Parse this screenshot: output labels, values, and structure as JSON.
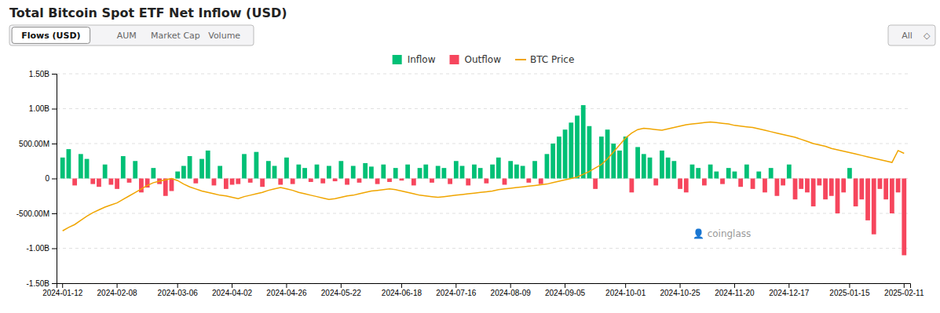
{
  "chart_data": {
    "type": "bar",
    "title": "Total Bitcoin Spot ETF Net Inflow (USD)",
    "annotations": [
      "Flows (USD)",
      "AUM",
      "Market Cap",
      "Volume",
      "All",
      "◇",
      "👤 coinglass"
    ],
    "categories": [
      "2024-01-12",
      null,
      null,
      null,
      null,
      null,
      null,
      null,
      null,
      "2024-02-08",
      null,
      null,
      null,
      null,
      null,
      null,
      null,
      null,
      null,
      "2024-03-06",
      null,
      null,
      null,
      null,
      null,
      null,
      null,
      null,
      "2024-04-02",
      null,
      null,
      null,
      null,
      null,
      null,
      null,
      null,
      "2024-04-26",
      null,
      null,
      null,
      null,
      null,
      null,
      null,
      null,
      "2024-05-22",
      null,
      null,
      null,
      null,
      null,
      null,
      null,
      null,
      null,
      "2024-06-18",
      null,
      null,
      null,
      null,
      null,
      null,
      null,
      null,
      "2024-07-16",
      null,
      null,
      null,
      null,
      null,
      null,
      null,
      null,
      "2024-08-09",
      null,
      null,
      null,
      null,
      null,
      null,
      null,
      null,
      "2024-09-05",
      null,
      null,
      null,
      null,
      null,
      null,
      null,
      null,
      null,
      "2024-10-01",
      null,
      null,
      null,
      null,
      null,
      null,
      null,
      null,
      "2024-10-25",
      null,
      null,
      null,
      null,
      null,
      null,
      null,
      null,
      "2024-11-20",
      null,
      null,
      null,
      null,
      null,
      null,
      null,
      null,
      "2024-12-17",
      null,
      null,
      null,
      null,
      null,
      null,
      null,
      null,
      null,
      "2025-01-15",
      null,
      null,
      null,
      null,
      null,
      null,
      null,
      null,
      "2025-02-11"
    ],
    "series": [
      {
        "name": "Inflow",
        "type": "bar",
        "color": "#00c076",
        "values": [
          300000000,
          420000000,
          null,
          350000000,
          280000000,
          null,
          null,
          200000000,
          null,
          null,
          320000000,
          null,
          250000000,
          null,
          null,
          150000000,
          null,
          null,
          null,
          100000000,
          180000000,
          320000000,
          null,
          280000000,
          400000000,
          null,
          180000000,
          null,
          null,
          null,
          350000000,
          null,
          380000000,
          null,
          250000000,
          180000000,
          null,
          300000000,
          null,
          200000000,
          150000000,
          null,
          200000000,
          null,
          180000000,
          null,
          250000000,
          null,
          180000000,
          null,
          220000000,
          170000000,
          null,
          200000000,
          null,
          150000000,
          null,
          200000000,
          null,
          150000000,
          200000000,
          null,
          180000000,
          150000000,
          null,
          250000000,
          180000000,
          null,
          200000000,
          150000000,
          null,
          200000000,
          300000000,
          null,
          250000000,
          200000000,
          180000000,
          null,
          250000000,
          null,
          350000000,
          500000000,
          600000000,
          700000000,
          800000000,
          900000000,
          1050000000,
          750000000,
          null,
          600000000,
          700000000,
          500000000,
          400000000,
          600000000,
          null,
          450000000,
          350000000,
          300000000,
          null,
          400000000,
          300000000,
          250000000,
          null,
          null,
          200000000,
          150000000,
          null,
          200000000,
          100000000,
          null,
          150000000,
          100000000,
          null,
          200000000,
          null,
          100000000,
          null,
          150000000,
          null,
          null,
          200000000,
          null,
          null,
          null,
          null,
          null,
          null,
          null,
          null,
          null,
          150000000,
          null,
          null,
          null,
          null,
          null,
          null,
          null,
          null,
          null
        ]
      },
      {
        "name": "Outflow",
        "type": "bar",
        "color": "#f6465d",
        "values": [
          null,
          null,
          -100000000,
          null,
          null,
          -80000000,
          -120000000,
          null,
          -90000000,
          -150000000,
          null,
          -60000000,
          null,
          -200000000,
          -130000000,
          null,
          -80000000,
          -250000000,
          -180000000,
          null,
          null,
          null,
          -70000000,
          null,
          null,
          -100000000,
          null,
          -150000000,
          -90000000,
          -80000000,
          null,
          -60000000,
          null,
          -120000000,
          null,
          null,
          -90000000,
          null,
          -80000000,
          null,
          null,
          -50000000,
          null,
          -70000000,
          null,
          -40000000,
          null,
          -90000000,
          null,
          -60000000,
          null,
          null,
          -80000000,
          null,
          -50000000,
          null,
          -30000000,
          null,
          -100000000,
          null,
          null,
          -60000000,
          null,
          null,
          -80000000,
          null,
          null,
          -100000000,
          null,
          null,
          -70000000,
          null,
          null,
          -90000000,
          null,
          null,
          null,
          -60000000,
          null,
          -80000000,
          null,
          null,
          null,
          null,
          null,
          null,
          null,
          null,
          -150000000,
          null,
          null,
          null,
          null,
          null,
          -200000000,
          null,
          null,
          null,
          -100000000,
          null,
          null,
          null,
          -150000000,
          -200000000,
          null,
          null,
          -100000000,
          null,
          null,
          -80000000,
          null,
          null,
          -120000000,
          null,
          -150000000,
          null,
          -200000000,
          null,
          -250000000,
          -100000000,
          null,
          -300000000,
          -150000000,
          -200000000,
          -400000000,
          -100000000,
          -300000000,
          -250000000,
          -500000000,
          -200000000,
          null,
          -400000000,
          -300000000,
          -600000000,
          -800000000,
          -150000000,
          -300000000,
          -500000000,
          -200000000,
          -1100000000
        ]
      },
      {
        "name": "BTC Price",
        "type": "line",
        "color": "#f0a500",
        "values": [
          -750000000,
          -700000000,
          -660000000,
          -600000000,
          -540000000,
          -490000000,
          -450000000,
          -410000000,
          -380000000,
          -350000000,
          -300000000,
          -250000000,
          -200000000,
          -150000000,
          -100000000,
          -60000000,
          -40000000,
          -20000000,
          0,
          -30000000,
          -80000000,
          -120000000,
          -150000000,
          -180000000,
          -200000000,
          -220000000,
          -240000000,
          -250000000,
          -270000000,
          -290000000,
          -260000000,
          -240000000,
          -220000000,
          -200000000,
          -170000000,
          -150000000,
          -130000000,
          -150000000,
          -170000000,
          -200000000,
          -220000000,
          -240000000,
          -260000000,
          -280000000,
          -300000000,
          -290000000,
          -270000000,
          -250000000,
          -240000000,
          -220000000,
          -200000000,
          -180000000,
          -170000000,
          -160000000,
          -150000000,
          -160000000,
          -180000000,
          -200000000,
          -220000000,
          -240000000,
          -250000000,
          -260000000,
          -270000000,
          -260000000,
          -250000000,
          -240000000,
          -230000000,
          -220000000,
          -210000000,
          -200000000,
          -190000000,
          -180000000,
          -160000000,
          -150000000,
          -140000000,
          -130000000,
          -120000000,
          -110000000,
          -100000000,
          -90000000,
          -80000000,
          -60000000,
          -40000000,
          -20000000,
          0,
          20000000,
          60000000,
          100000000,
          150000000,
          200000000,
          280000000,
          380000000,
          480000000,
          580000000,
          650000000,
          700000000,
          720000000,
          710000000,
          700000000,
          690000000,
          710000000,
          730000000,
          750000000,
          770000000,
          780000000,
          790000000,
          800000000,
          810000000,
          800000000,
          790000000,
          780000000,
          760000000,
          750000000,
          740000000,
          730000000,
          710000000,
          690000000,
          670000000,
          650000000,
          630000000,
          610000000,
          590000000,
          560000000,
          530000000,
          500000000,
          480000000,
          460000000,
          430000000,
          410000000,
          390000000,
          370000000,
          350000000,
          330000000,
          310000000,
          290000000,
          270000000,
          250000000,
          230000000,
          400000000,
          360000000
        ]
      }
    ],
    "ylim": [
      -1500000000,
      1500000000
    ],
    "yticks": [
      {
        "value": 1500000000,
        "label": "1.50B"
      },
      {
        "value": 1000000000,
        "label": "1.00B"
      },
      {
        "value": 500000000,
        "label": "500.00M"
      },
      0,
      {
        "value": -500000000,
        "label": "-500.00M"
      },
      {
        "value": -1000000000,
        "label": "-1.00B"
      },
      {
        "value": -1500000000,
        "label": "-1.50B"
      }
    ],
    "grid": true,
    "legend": "top"
  }
}
